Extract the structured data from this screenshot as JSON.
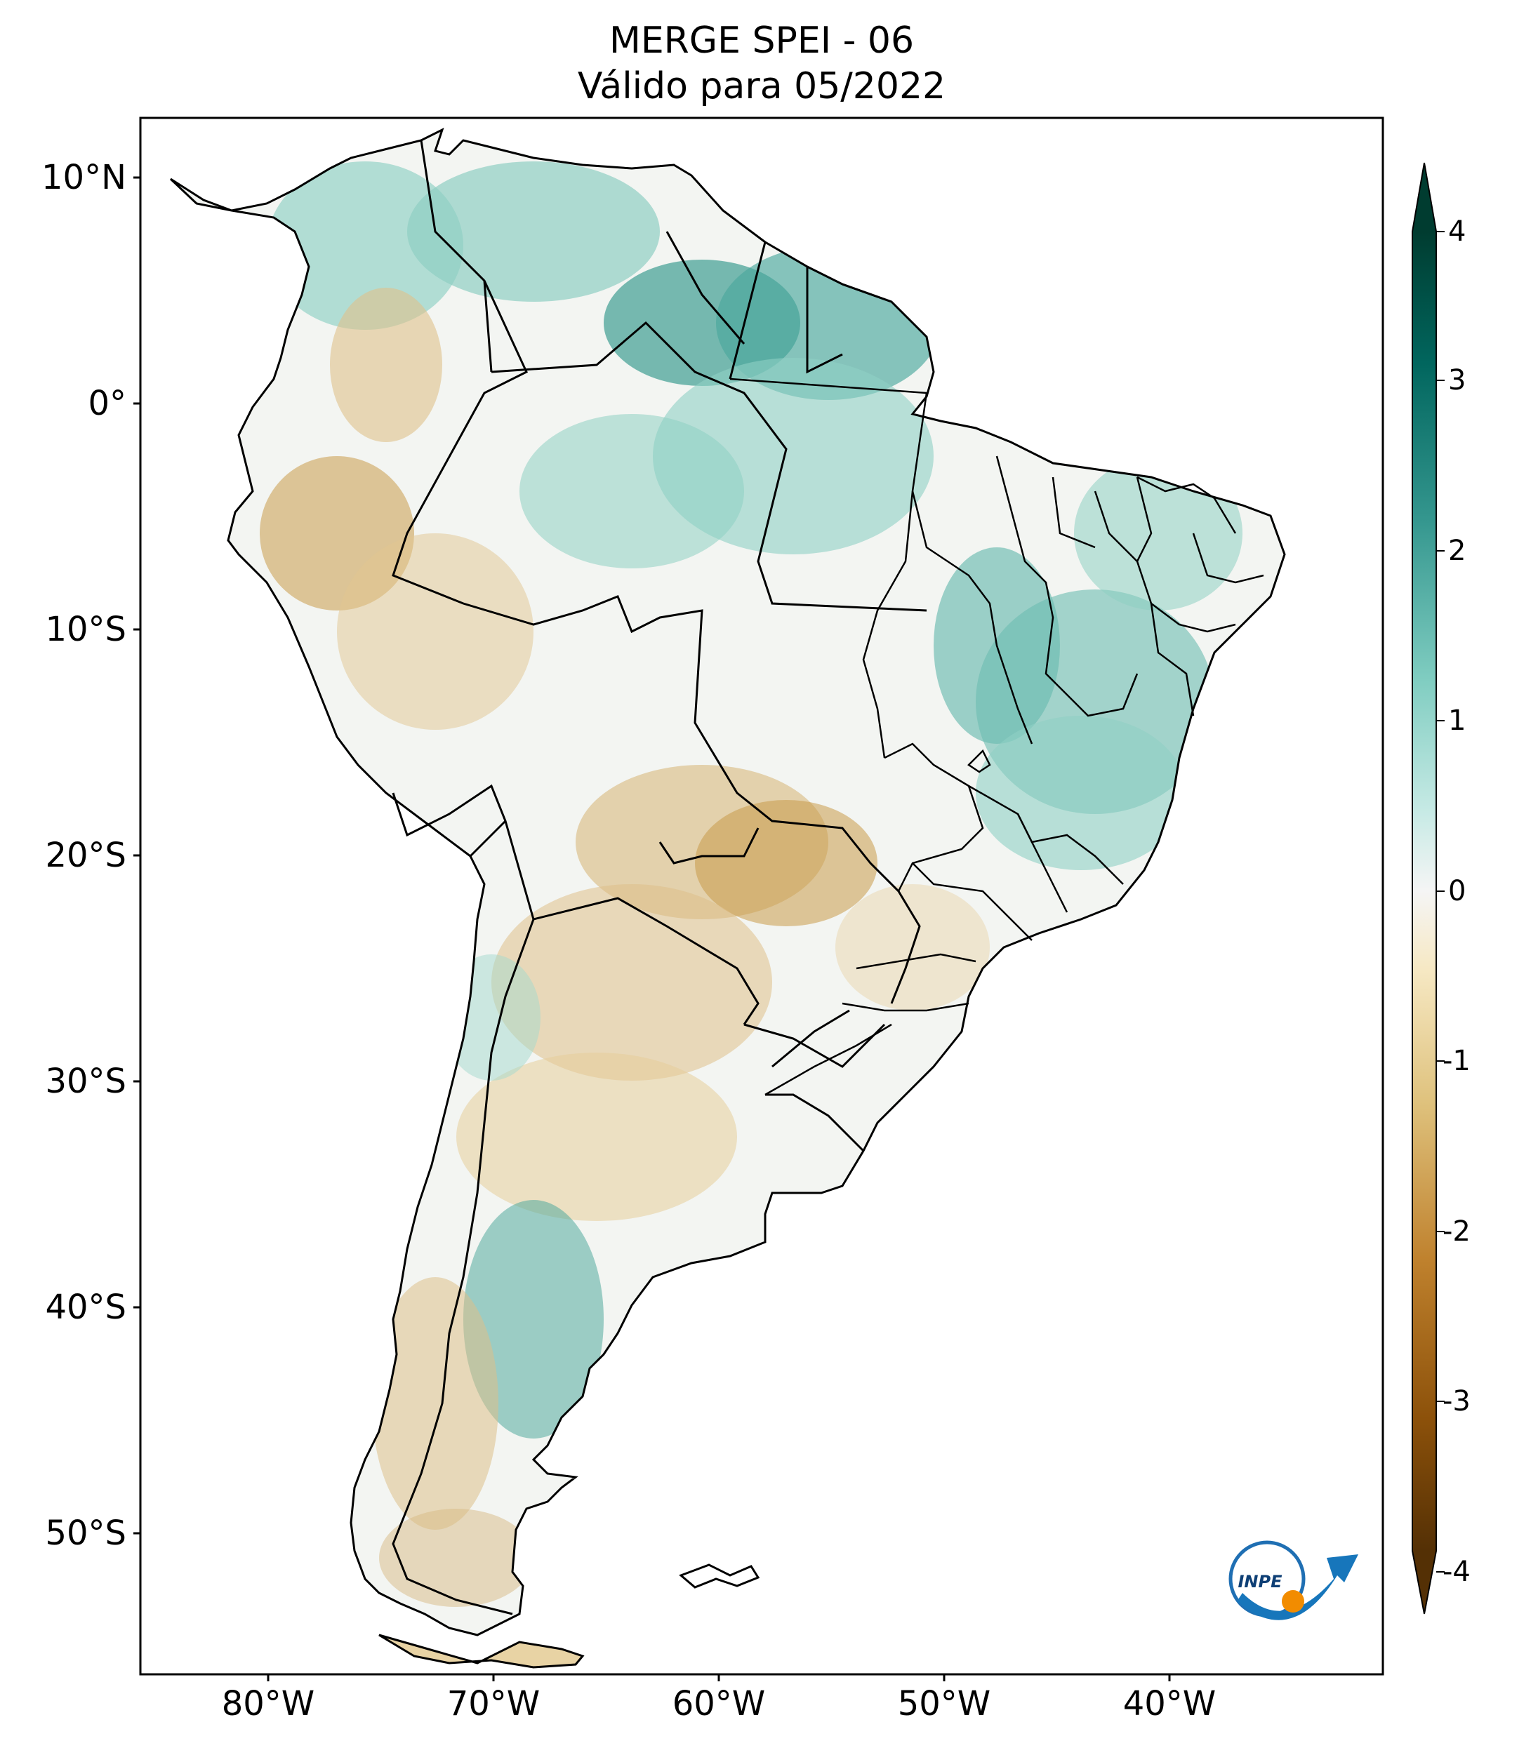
{
  "title": {
    "line1": "MERGE   SPEI - 06",
    "line2": "Válido para 05/2022"
  },
  "map": {
    "region": "South America",
    "lat_ticks": [
      "10°N",
      "0°",
      "10°S",
      "20°S",
      "30°S",
      "40°S",
      "50°S"
    ],
    "lon_ticks": [
      "80°W",
      "70°W",
      "60°W",
      "50°W",
      "40°W"
    ]
  },
  "colorbar": {
    "ticks": [
      "4",
      "3",
      "2",
      "1",
      "0",
      "-1",
      "-2",
      "-3",
      "-4"
    ],
    "colors": {
      "wet_extreme": "#003c30",
      "wet_strong": "#01665e",
      "wet_moderate": "#35978f",
      "wet_mild": "#80cdc1",
      "wet_slight": "#c7eae5",
      "neutral": "#f5f5f5",
      "dry_slight": "#f6e8c3",
      "dry_mild": "#dfc27d",
      "dry_moderate": "#bf812d",
      "dry_strong": "#8c510a",
      "dry_extreme": "#543005"
    }
  },
  "logo": {
    "text": "INPE"
  }
}
